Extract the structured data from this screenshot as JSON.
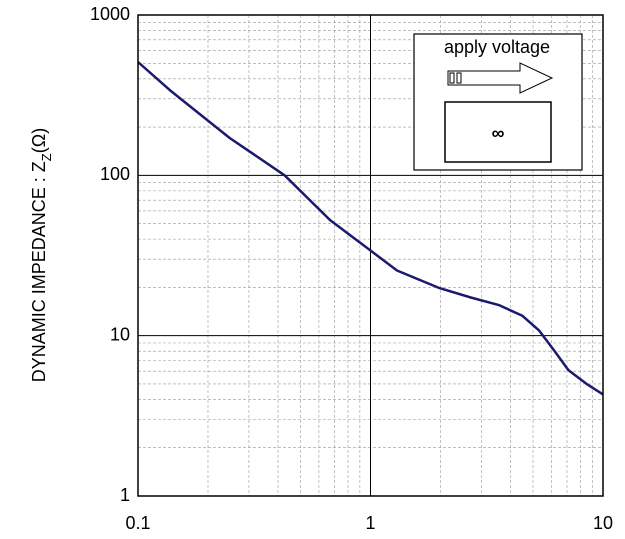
{
  "chart_data": {
    "type": "line",
    "xscale": "log",
    "yscale": "log",
    "grid": true,
    "ylabel": "DYNAMIC IMPEDANCE : Z",
    "ylabel_sub": "Z",
    "ylabel_tail": "(Ω)",
    "inset_label": "apply voltage",
    "inset_symbol": "∞",
    "x": [
      0.1,
      0.137,
      0.185,
      0.248,
      0.427,
      0.67,
      1,
      1.3,
      1.98,
      2.7,
      3.58,
      4.5,
      5.3,
      6.2,
      7.1,
      8.5,
      10
    ],
    "series": [
      {
        "name": null,
        "color": "#1a1a6e",
        "values": [
          509,
          340,
          240,
          171,
          100,
          52.6,
          34,
          25.5,
          19.8,
          17.3,
          15.5,
          13.3,
          10.8,
          8,
          6.1,
          5,
          4.3
        ]
      }
    ],
    "xlim": [
      0.1,
      10
    ],
    "xticks": [
      0.1,
      1,
      10
    ],
    "xminorticks": [
      0.2,
      0.3,
      0.4,
      0.5,
      0.6,
      0.7,
      0.8,
      0.9,
      2,
      3,
      4,
      5,
      6,
      7,
      8,
      9
    ],
    "ylim": [
      1,
      1000
    ],
    "yticks": [
      1,
      10,
      100,
      1000
    ],
    "yminorticks": [
      2,
      3,
      4,
      5,
      6,
      7,
      8,
      9,
      20,
      30,
      40,
      50,
      60,
      70,
      80,
      90,
      200,
      300,
      400,
      500,
      600,
      700,
      800,
      900
    ]
  }
}
